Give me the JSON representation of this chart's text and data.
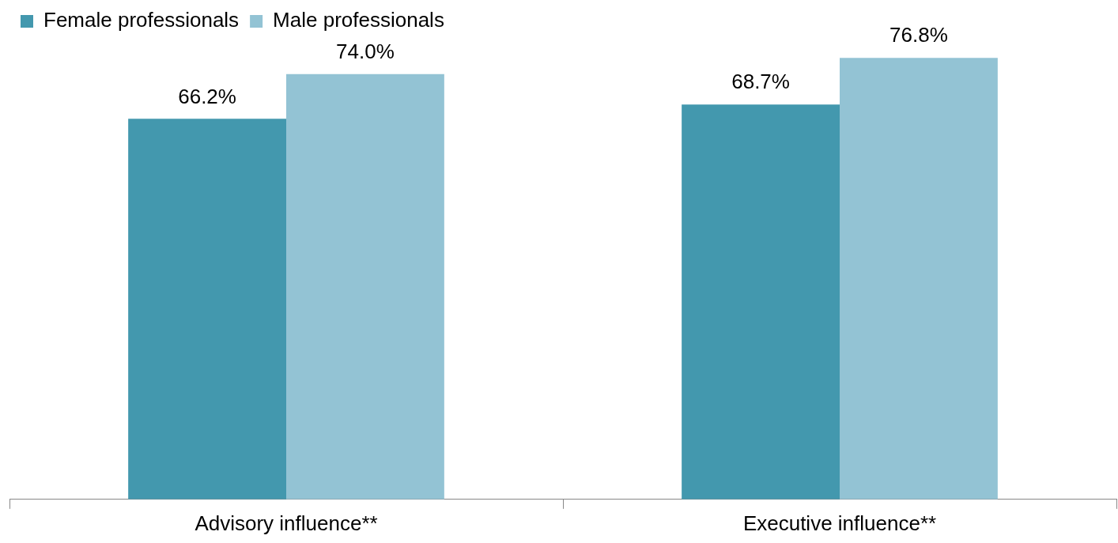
{
  "chart_data": {
    "type": "bar",
    "categories": [
      "Advisory influence**",
      "Executive influence**"
    ],
    "series": [
      {
        "name": "Female professionals",
        "color": "#4398ae",
        "values": [
          66.2,
          68.7
        ],
        "value_labels": [
          "66.2%",
          "68.7%"
        ]
      },
      {
        "name": "Male professionals",
        "color": "#93c3d4",
        "values": [
          74.0,
          76.8
        ],
        "value_labels": [
          "74.0%",
          "76.8%"
        ]
      }
    ],
    "legend": "top left",
    "grid": false
  }
}
